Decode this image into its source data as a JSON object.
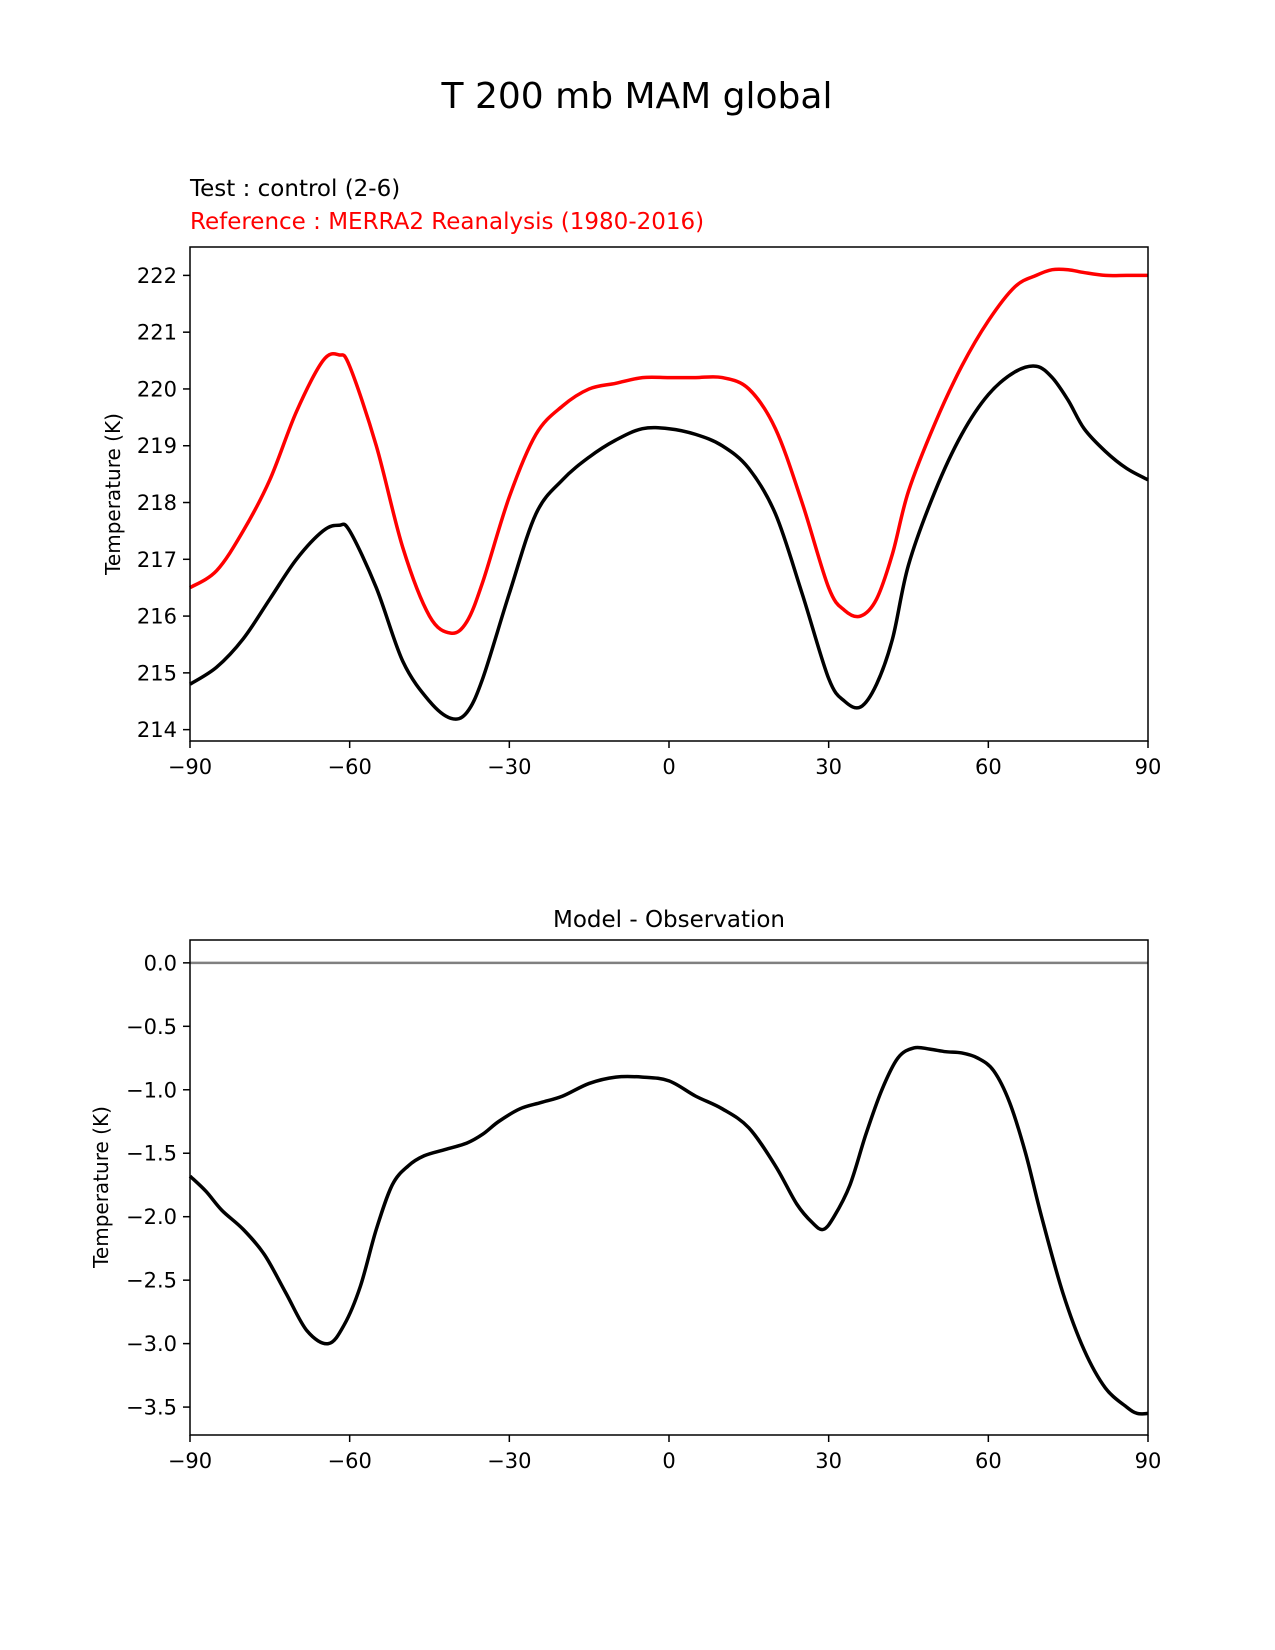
{
  "figure_title": "T 200 mb MAM global",
  "colors": {
    "test": "#000000",
    "reference": "#ff0000",
    "zero_line": "#808080",
    "axis": "#000000"
  },
  "chart_data": [
    {
      "type": "line",
      "title": "",
      "subtitle_test": "Test : control (2-6)",
      "subtitle_reference": "Reference : MERRA2 Reanalysis (1980-2016)",
      "xlabel": "",
      "ylabel": "Temperature (K)",
      "xlim": [
        -90,
        90
      ],
      "ylim": [
        213.8,
        222.5
      ],
      "xticks": [
        -90,
        -60,
        -30,
        0,
        30,
        60,
        90
      ],
      "xtick_labels": [
        "−90",
        "−60",
        "−30",
        "0",
        "30",
        "60",
        "90"
      ],
      "yticks": [
        214,
        215,
        216,
        217,
        218,
        219,
        220,
        221,
        222
      ],
      "ytick_labels": [
        "214",
        "215",
        "216",
        "217",
        "218",
        "219",
        "220",
        "221",
        "222"
      ],
      "x": [
        -90,
        -85,
        -80,
        -75,
        -70,
        -65,
        -62,
        -60,
        -55,
        -50,
        -45,
        -41,
        -38,
        -35,
        -30,
        -25,
        -20,
        -15,
        -10,
        -5,
        0,
        5,
        10,
        15,
        20,
        25,
        30,
        33,
        36,
        39,
        42,
        45,
        50,
        55,
        60,
        65,
        69,
        72,
        75,
        78,
        82,
        86,
        90
      ],
      "series": [
        {
          "name": "Test : control (2-6)",
          "color": "#000000",
          "values": [
            214.8,
            215.1,
            215.6,
            216.3,
            217.0,
            217.5,
            217.6,
            217.5,
            216.5,
            215.2,
            214.5,
            214.2,
            214.3,
            214.9,
            216.4,
            217.8,
            218.4,
            218.8,
            219.1,
            219.3,
            219.3,
            219.2,
            219.0,
            218.6,
            217.8,
            216.4,
            214.9,
            214.5,
            214.4,
            214.8,
            215.6,
            216.9,
            218.2,
            219.2,
            219.9,
            220.3,
            220.4,
            220.2,
            219.8,
            219.3,
            218.9,
            218.6,
            218.4
          ]
        },
        {
          "name": "Reference : MERRA2 Reanalysis (1980-2016)",
          "color": "#ff0000",
          "values": [
            216.5,
            216.8,
            217.5,
            218.4,
            219.6,
            220.5,
            220.6,
            220.4,
            219.0,
            217.2,
            216.0,
            215.7,
            215.9,
            216.6,
            218.1,
            219.2,
            219.7,
            220.0,
            220.1,
            220.2,
            220.2,
            220.2,
            220.2,
            220.0,
            219.3,
            218.0,
            216.5,
            216.1,
            216.0,
            216.3,
            217.1,
            218.2,
            219.4,
            220.4,
            221.2,
            221.8,
            222.0,
            222.1,
            222.1,
            222.05,
            222.0,
            222.0,
            222.0
          ]
        }
      ]
    },
    {
      "type": "line",
      "title": "Model - Observation",
      "xlabel": "",
      "ylabel": "Temperature (K)",
      "xlim": [
        -90,
        90
      ],
      "ylim": [
        -3.72,
        0.18
      ],
      "xticks": [
        -90,
        -60,
        -30,
        0,
        30,
        60,
        90
      ],
      "xtick_labels": [
        "−90",
        "−60",
        "−30",
        "0",
        "30",
        "60",
        "90"
      ],
      "yticks": [
        0.0,
        -0.5,
        -1.0,
        -1.5,
        -2.0,
        -2.5,
        -3.0,
        -3.5
      ],
      "ytick_labels": [
        "0.0",
        "−0.5",
        "−1.0",
        "−1.5",
        "−2.0",
        "−2.5",
        "−3.0",
        "−3.5"
      ],
      "zero_line": 0,
      "x": [
        -90,
        -87,
        -84,
        -80,
        -76,
        -72,
        -68,
        -64,
        -61,
        -58,
        -55,
        -52,
        -49,
        -46,
        -42,
        -38,
        -35,
        -32,
        -28,
        -24,
        -20,
        -15,
        -10,
        -5,
        0,
        5,
        10,
        15,
        20,
        24,
        27,
        29,
        31,
        34,
        37,
        40,
        43,
        46,
        49,
        52,
        55,
        58,
        61,
        64,
        67,
        70,
        74,
        78,
        82,
        86,
        88,
        90
      ],
      "series": [
        {
          "name": "Model - Observation",
          "color": "#000000",
          "values": [
            -1.68,
            -1.8,
            -1.95,
            -2.1,
            -2.3,
            -2.6,
            -2.9,
            -3.0,
            -2.85,
            -2.55,
            -2.1,
            -1.75,
            -1.6,
            -1.52,
            -1.47,
            -1.42,
            -1.35,
            -1.25,
            -1.15,
            -1.1,
            -1.05,
            -0.95,
            -0.9,
            -0.9,
            -0.93,
            -1.05,
            -1.15,
            -1.3,
            -1.6,
            -1.9,
            -2.05,
            -2.1,
            -2.0,
            -1.75,
            -1.35,
            -1.0,
            -0.75,
            -0.67,
            -0.68,
            -0.7,
            -0.71,
            -0.75,
            -0.85,
            -1.1,
            -1.5,
            -2.0,
            -2.6,
            -3.05,
            -3.35,
            -3.5,
            -3.55,
            -3.55
          ]
        }
      ]
    }
  ]
}
